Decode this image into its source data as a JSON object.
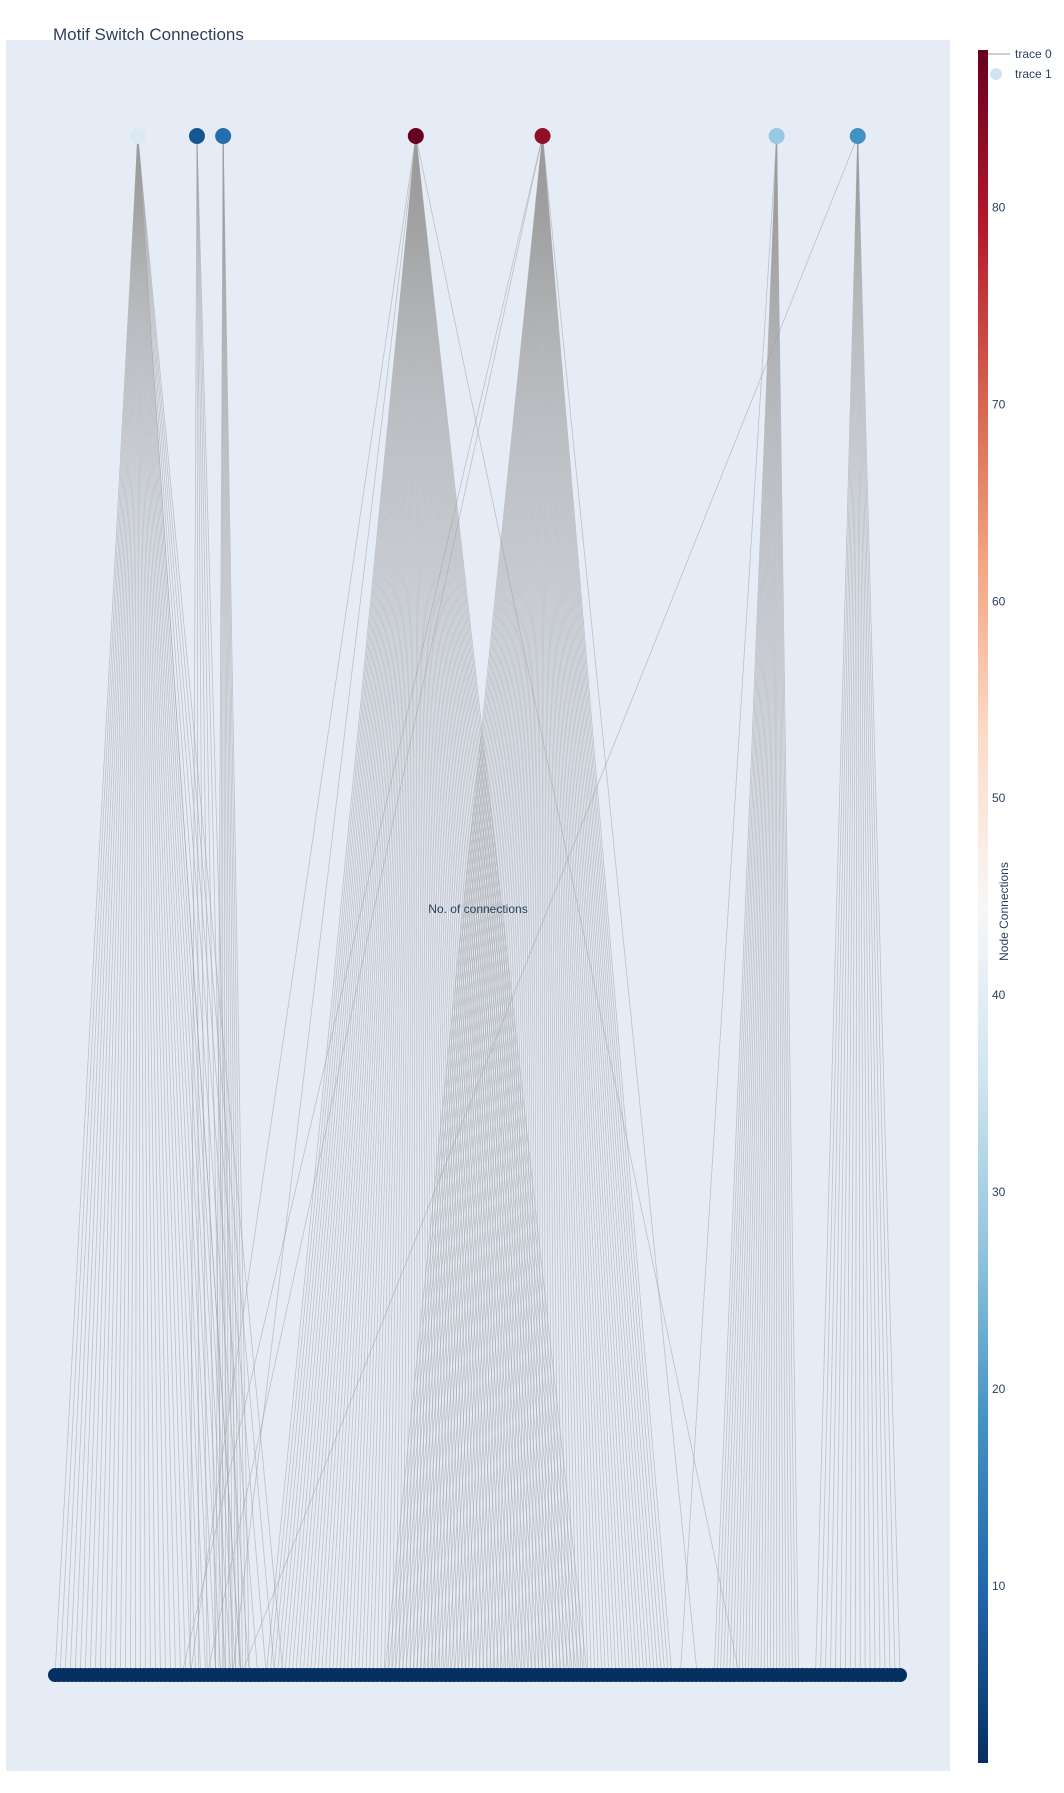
{
  "chart_data": {
    "type": "network",
    "title": "Motif Switch Connections",
    "annotation": "No. of connections",
    "legend": {
      "placement": "top-right",
      "entries": [
        {
          "name": "trace 0",
          "symbol": "line"
        },
        {
          "name": "trace 1",
          "symbol": "marker"
        }
      ]
    },
    "plot_background": "#e5ecf6",
    "edge_color": "#9e9e9e",
    "colorbar": {
      "title": "Node Connections",
      "colorscale": "RdBu (reversed)",
      "range": [
        1,
        88
      ],
      "tickvals": [
        10,
        20,
        30,
        40,
        50,
        60,
        70,
        80
      ],
      "ticktext": [
        "10",
        "20",
        "30",
        "40",
        "50",
        "60",
        "70",
        "80"
      ],
      "colors": [
        "#053061",
        "#2166ac",
        "#4393c3",
        "#92c5de",
        "#d1e5f0",
        "#f7f7f7",
        "#fddbc7",
        "#f4a582",
        "#d6604d",
        "#b2182b",
        "#67001f"
      ]
    },
    "x_range": [
      0,
      100
    ],
    "y_range": [
      0,
      1
    ],
    "top_nodes": [
      {
        "x": 9.8,
        "connections": 38,
        "bottom_span": [
          0,
          22
        ],
        "extra_targets": [
          22,
          23,
          24,
          25,
          26,
          27
        ]
      },
      {
        "x": 16.8,
        "connections": 7,
        "bottom_span": [
          16,
          22
        ],
        "extra_targets": []
      },
      {
        "x": 19.9,
        "connections": 11,
        "bottom_span": [
          19,
          23
        ],
        "extra_targets": []
      },
      {
        "x": 42.7,
        "connections": 88,
        "bottom_span": [
          25,
          63
        ],
        "extra_targets": [
          81,
          16,
          21
        ]
      },
      {
        "x": 57.7,
        "connections": 83,
        "bottom_span": [
          39,
          73
        ],
        "extra_targets": [
          15,
          18,
          76
        ]
      },
      {
        "x": 85.4,
        "connections": 28,
        "bottom_span": [
          78,
          88
        ],
        "extra_targets": [
          74
        ]
      },
      {
        "x": 95.0,
        "connections": 18,
        "bottom_span": [
          90,
          100
        ],
        "extra_targets": [
          22
        ]
      }
    ],
    "bottom_nodes": {
      "x_from": 0,
      "x_to": 100,
      "count": 200,
      "connections": 1
    }
  }
}
